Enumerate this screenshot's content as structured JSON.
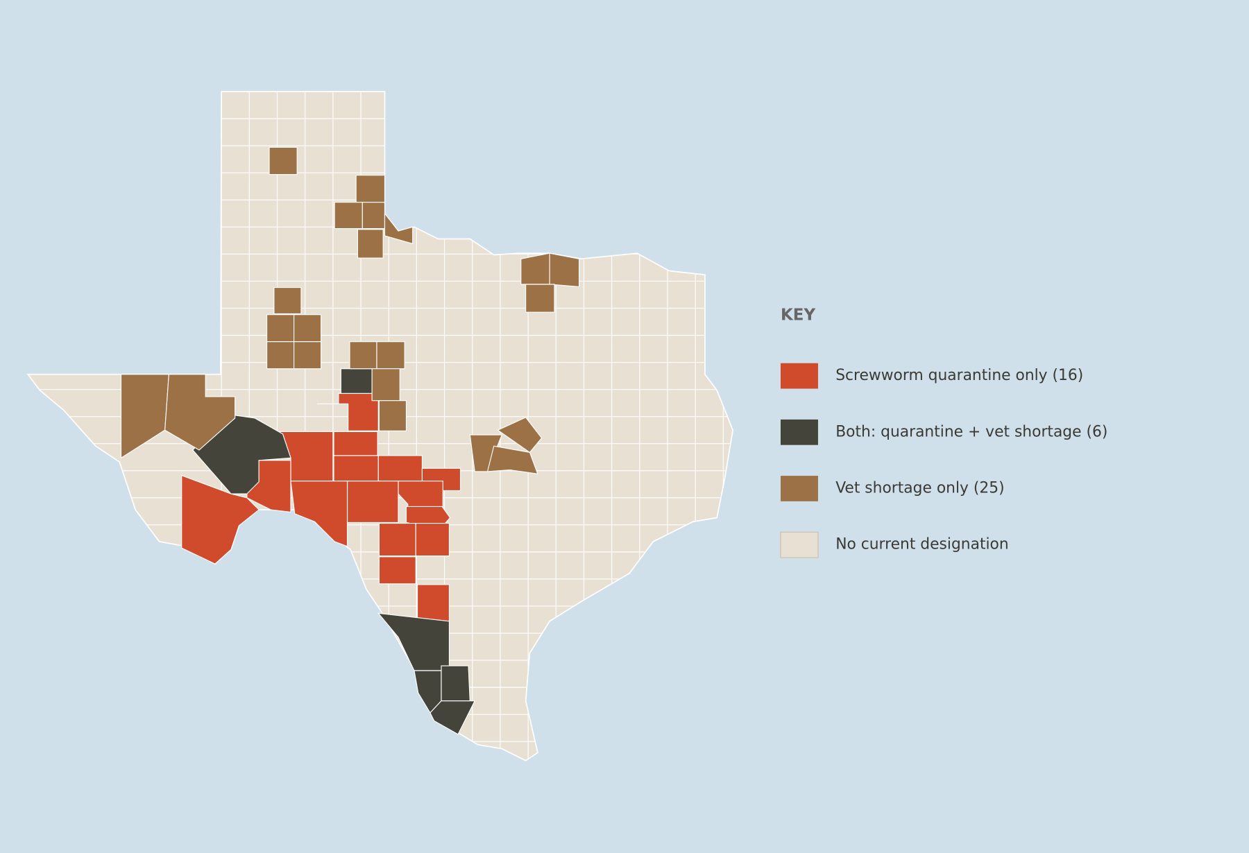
{
  "legend": {
    "title": "KEY",
    "items": [
      {
        "label": "Screwworm quarantine only (16)",
        "color": "#d04a2c"
      },
      {
        "label": "Both: quarantine + vet shortage (6)",
        "color": "#45443a"
      },
      {
        "label": "Vet shortage only (25)",
        "color": "#9c7146"
      },
      {
        "label": "No current designation",
        "color": "#e8e0d2"
      }
    ]
  }
}
